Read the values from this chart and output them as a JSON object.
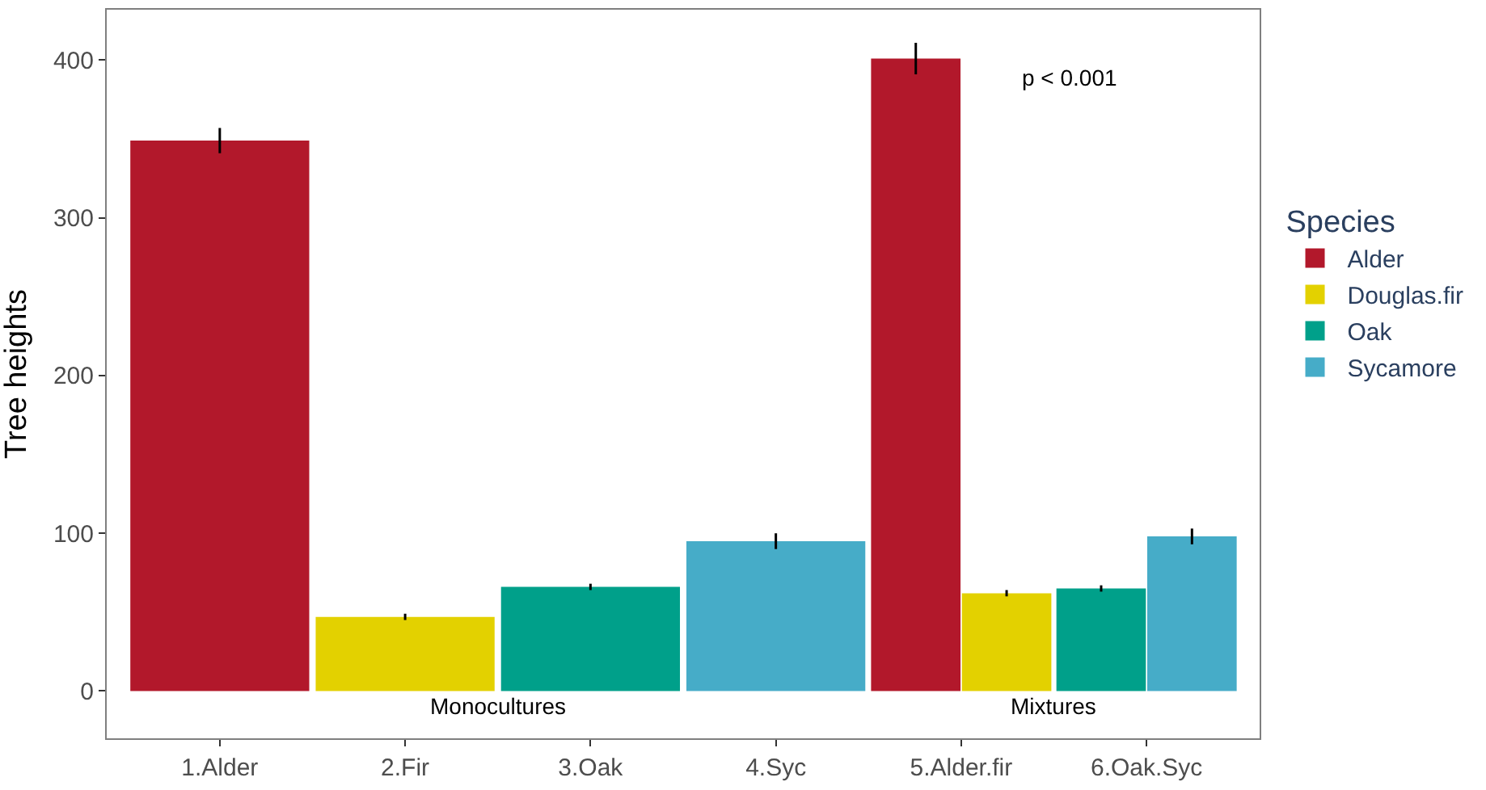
{
  "chart_data": {
    "type": "bar",
    "ylabel": "Tree heights",
    "legend_title": "Species",
    "categories": [
      "1.Alder",
      "2.Fir",
      "3.Oak",
      "4.Syc",
      "5.Alder.fir",
      "6.Oak.Syc"
    ],
    "series": [
      {
        "name": "Alder",
        "color": "#b2182b",
        "values": [
          349,
          null,
          null,
          null,
          401,
          null
        ],
        "errors": [
          8,
          null,
          null,
          null,
          10,
          null
        ]
      },
      {
        "name": "Douglas.fir",
        "color": "#e3d100",
        "values": [
          null,
          47,
          null,
          null,
          62,
          null
        ],
        "errors": [
          null,
          2,
          null,
          null,
          2,
          null
        ]
      },
      {
        "name": "Oak",
        "color": "#00a08a",
        "values": [
          null,
          null,
          66,
          null,
          null,
          65
        ],
        "errors": [
          null,
          null,
          2,
          null,
          null,
          2
        ]
      },
      {
        "name": "Sycamore",
        "color": "#46acc8",
        "values": [
          null,
          null,
          null,
          95,
          null,
          98
        ],
        "errors": [
          null,
          null,
          null,
          5,
          null,
          5
        ]
      }
    ],
    "annotations": [
      "p < 0.001",
      "Monocultures",
      "Mixtures"
    ],
    "ylim": [
      -30,
      432
    ],
    "yticks": [
      0,
      100,
      200,
      300,
      400
    ],
    "legend": "right"
  }
}
